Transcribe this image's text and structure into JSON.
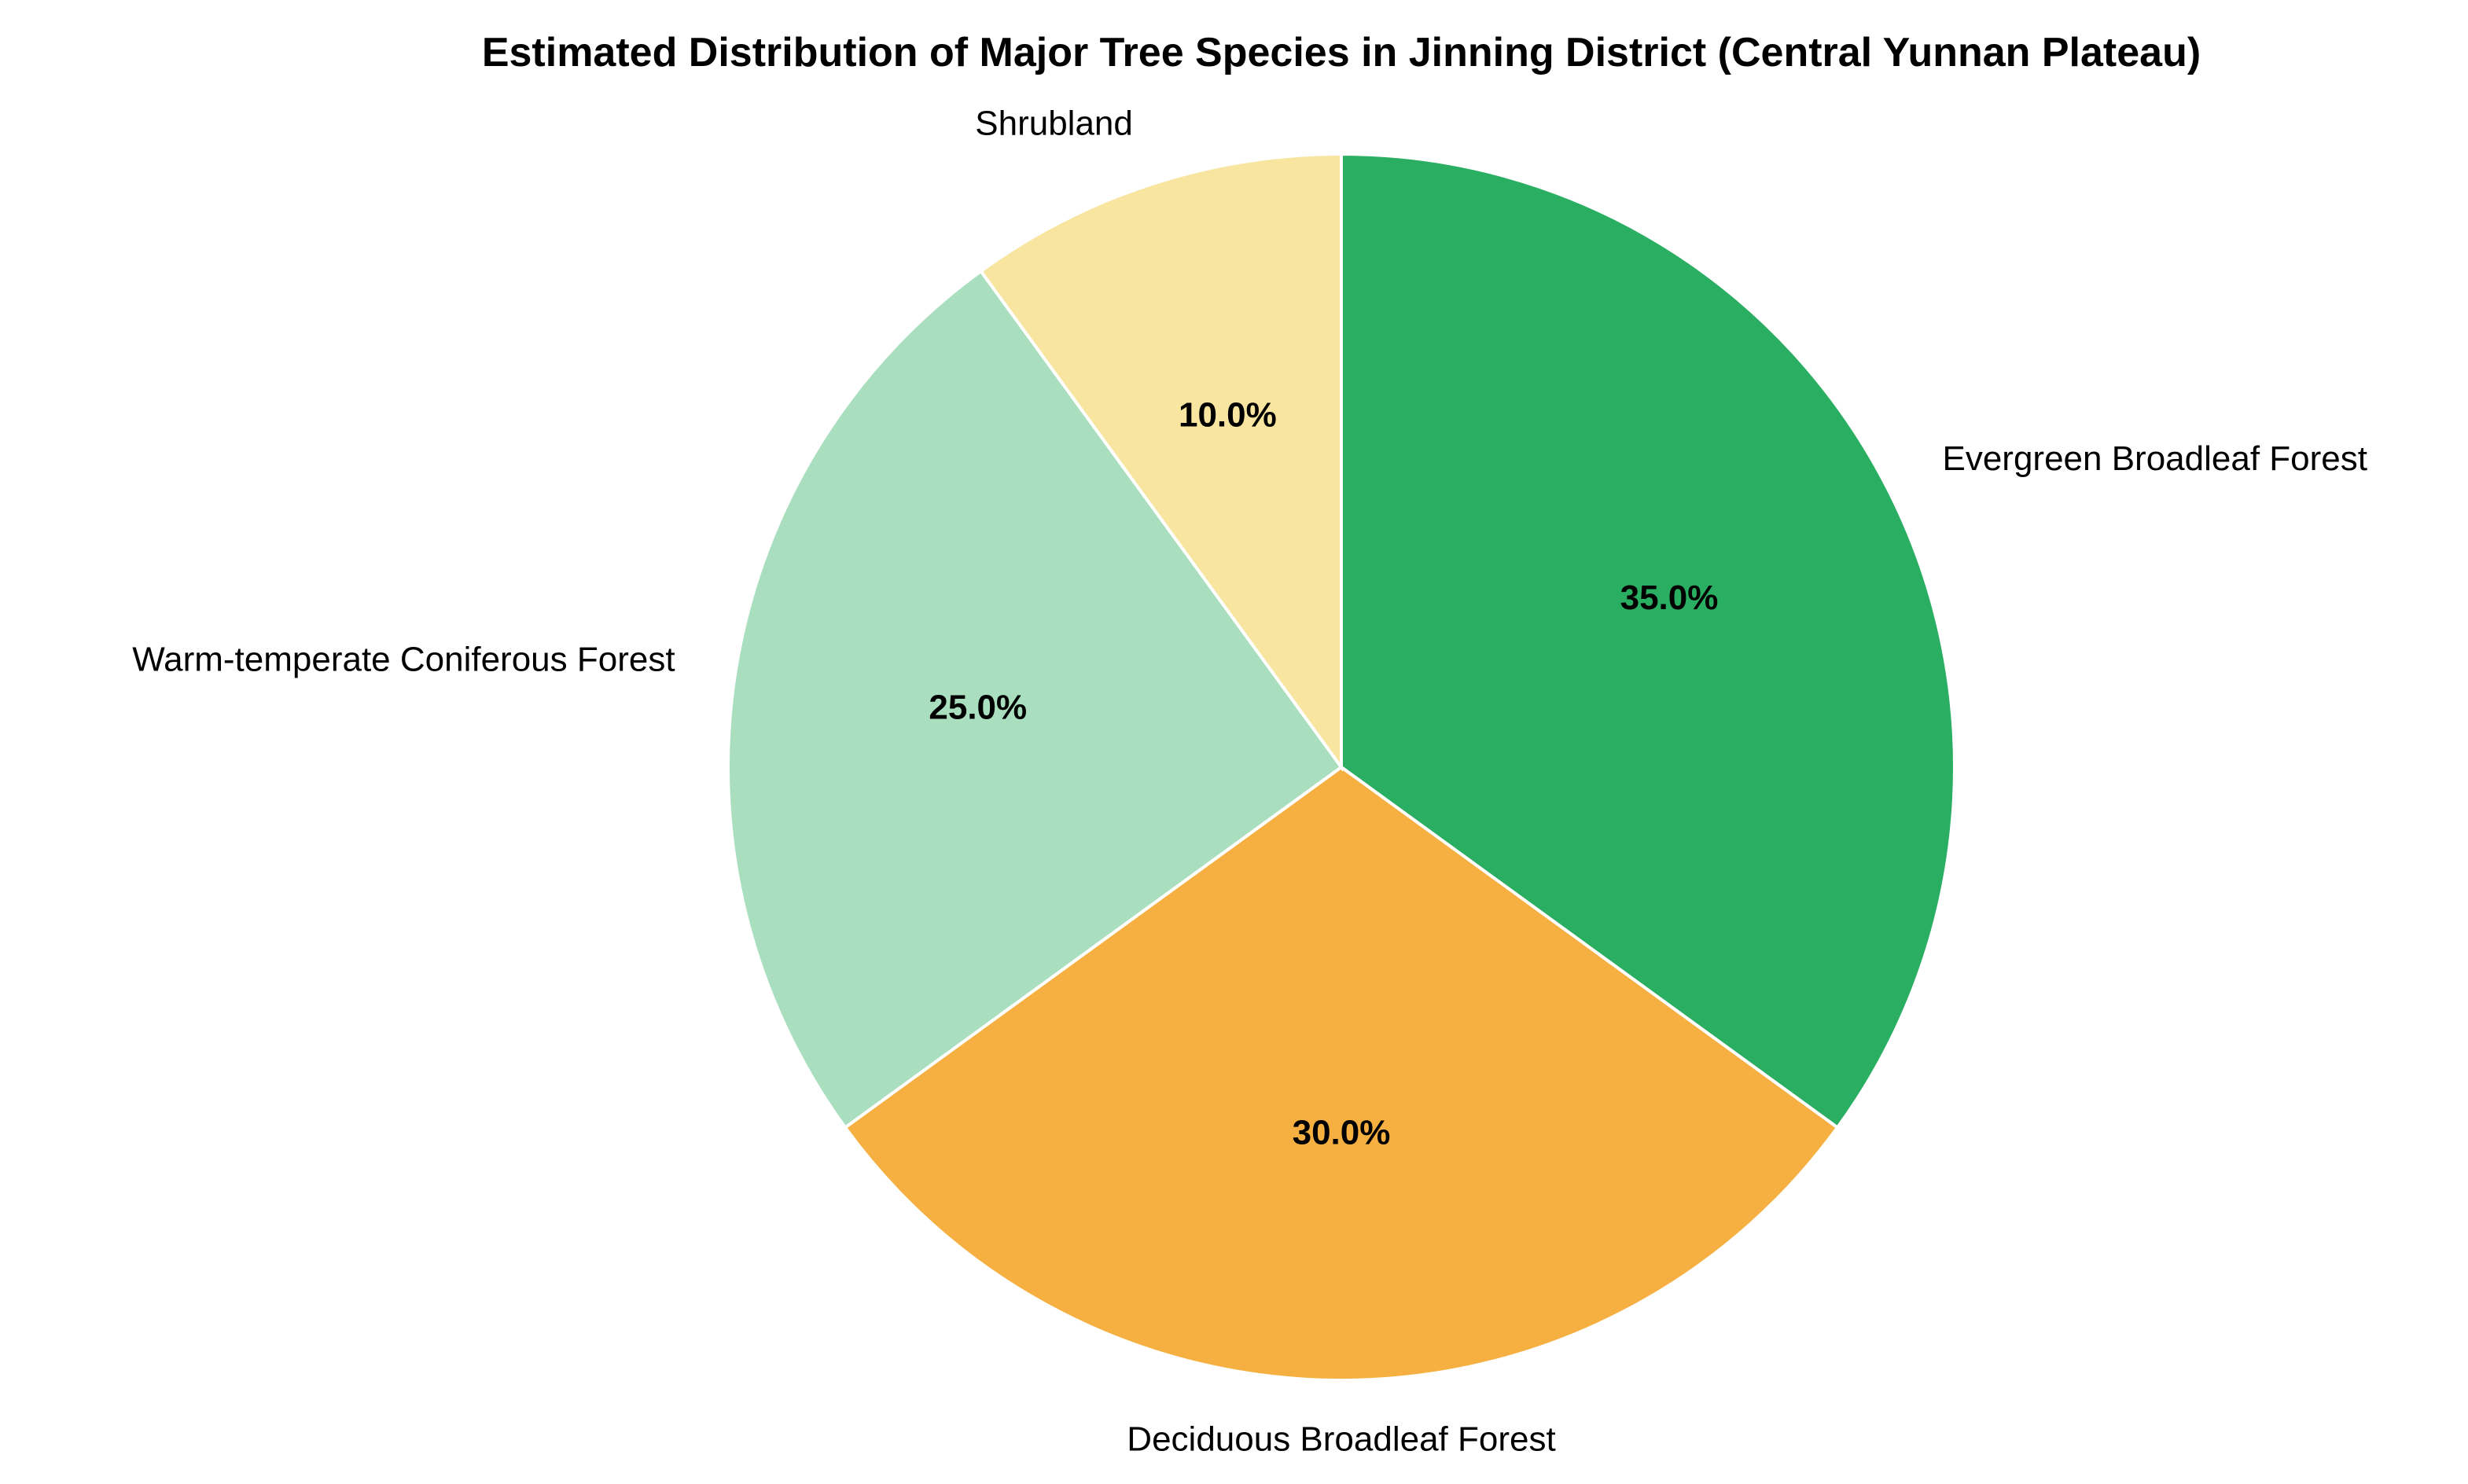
{
  "chart_data": {
    "type": "pie",
    "title": "Estimated Distribution of Major Tree Species in Jinning District (Central Yunnan Plateau)",
    "start": "top, clockwise",
    "slices": [
      {
        "label": "Evergreen Broadleaf Forest",
        "value": 35.0,
        "pct_label": "35.0%",
        "color": "#2aae62"
      },
      {
        "label": "Deciduous Broadleaf Forest",
        "value": 30.0,
        "pct_label": "30.0%",
        "color": "#f5b041"
      },
      {
        "label": "Warm-temperate Coniferous Forest",
        "value": 25.0,
        "pct_label": "25.0%",
        "color": "#a9dfbf"
      },
      {
        "label": "Shrubland",
        "value": 10.0,
        "pct_label": "10.0%",
        "color": "#f8e5a0"
      }
    ]
  }
}
